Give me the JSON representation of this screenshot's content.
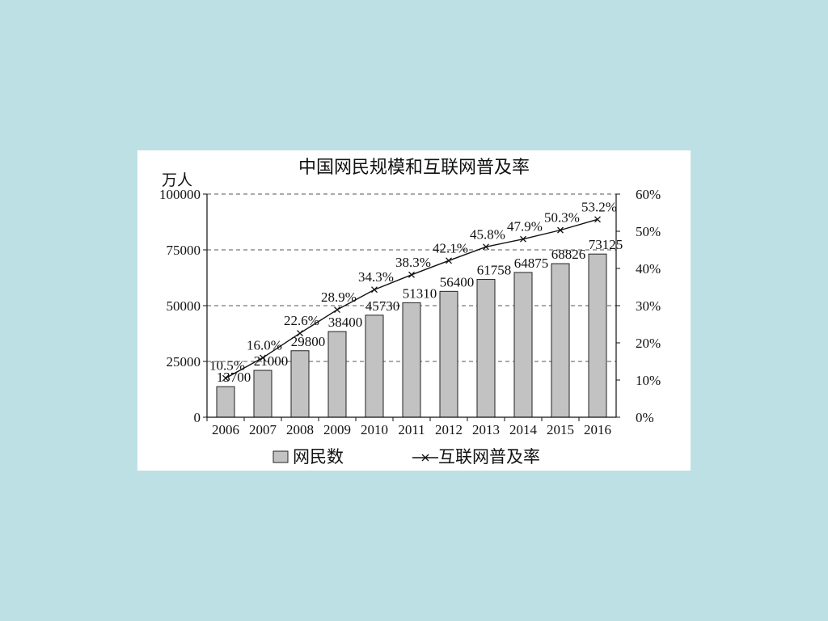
{
  "chart_data": {
    "type": "bar+line",
    "title": "中国网民规模和互联网普及率",
    "ylabel": "万人",
    "categories": [
      "2006",
      "2007",
      "2008",
      "2009",
      "2010",
      "2011",
      "2012",
      "2013",
      "2014",
      "2015",
      "2016"
    ],
    "series": [
      {
        "name": "网民数",
        "type": "bar",
        "axis": "left",
        "values": [
          13700,
          21000,
          29800,
          38400,
          45730,
          51310,
          56400,
          61758,
          64875,
          68826,
          73125
        ],
        "labels": [
          "13700",
          "21000",
          "29800",
          "38400",
          "45730",
          "51310",
          "56400",
          "61758",
          "64875",
          "68826",
          "73125"
        ]
      },
      {
        "name": "互联网普及率",
        "type": "line",
        "axis": "right",
        "values": [
          10.5,
          16.0,
          22.6,
          28.9,
          34.3,
          38.3,
          42.1,
          45.8,
          47.9,
          50.3,
          53.2
        ],
        "labels": [
          "10.5%",
          "16.0%",
          "22.6%",
          "28.9%",
          "34.3%",
          "38.3%",
          "42.1%",
          "45.8%",
          "47.9%",
          "50.3%",
          "53.2%"
        ]
      }
    ],
    "left_axis": {
      "ylim": [
        0,
        100000
      ],
      "ticks": [
        "0",
        "25000",
        "50000",
        "75000",
        "100000"
      ]
    },
    "right_axis": {
      "ylim": [
        0,
        60
      ],
      "ticks": [
        "0%",
        "10%",
        "20%",
        "30%",
        "40%",
        "50%",
        "60%"
      ]
    },
    "grid": "dashed-horizontal",
    "legend_position": "bottom",
    "colors": {
      "bar_fill": "#c2c2c2",
      "bar_stroke": "#222222",
      "line": "#111111",
      "grid": "#555555"
    }
  }
}
